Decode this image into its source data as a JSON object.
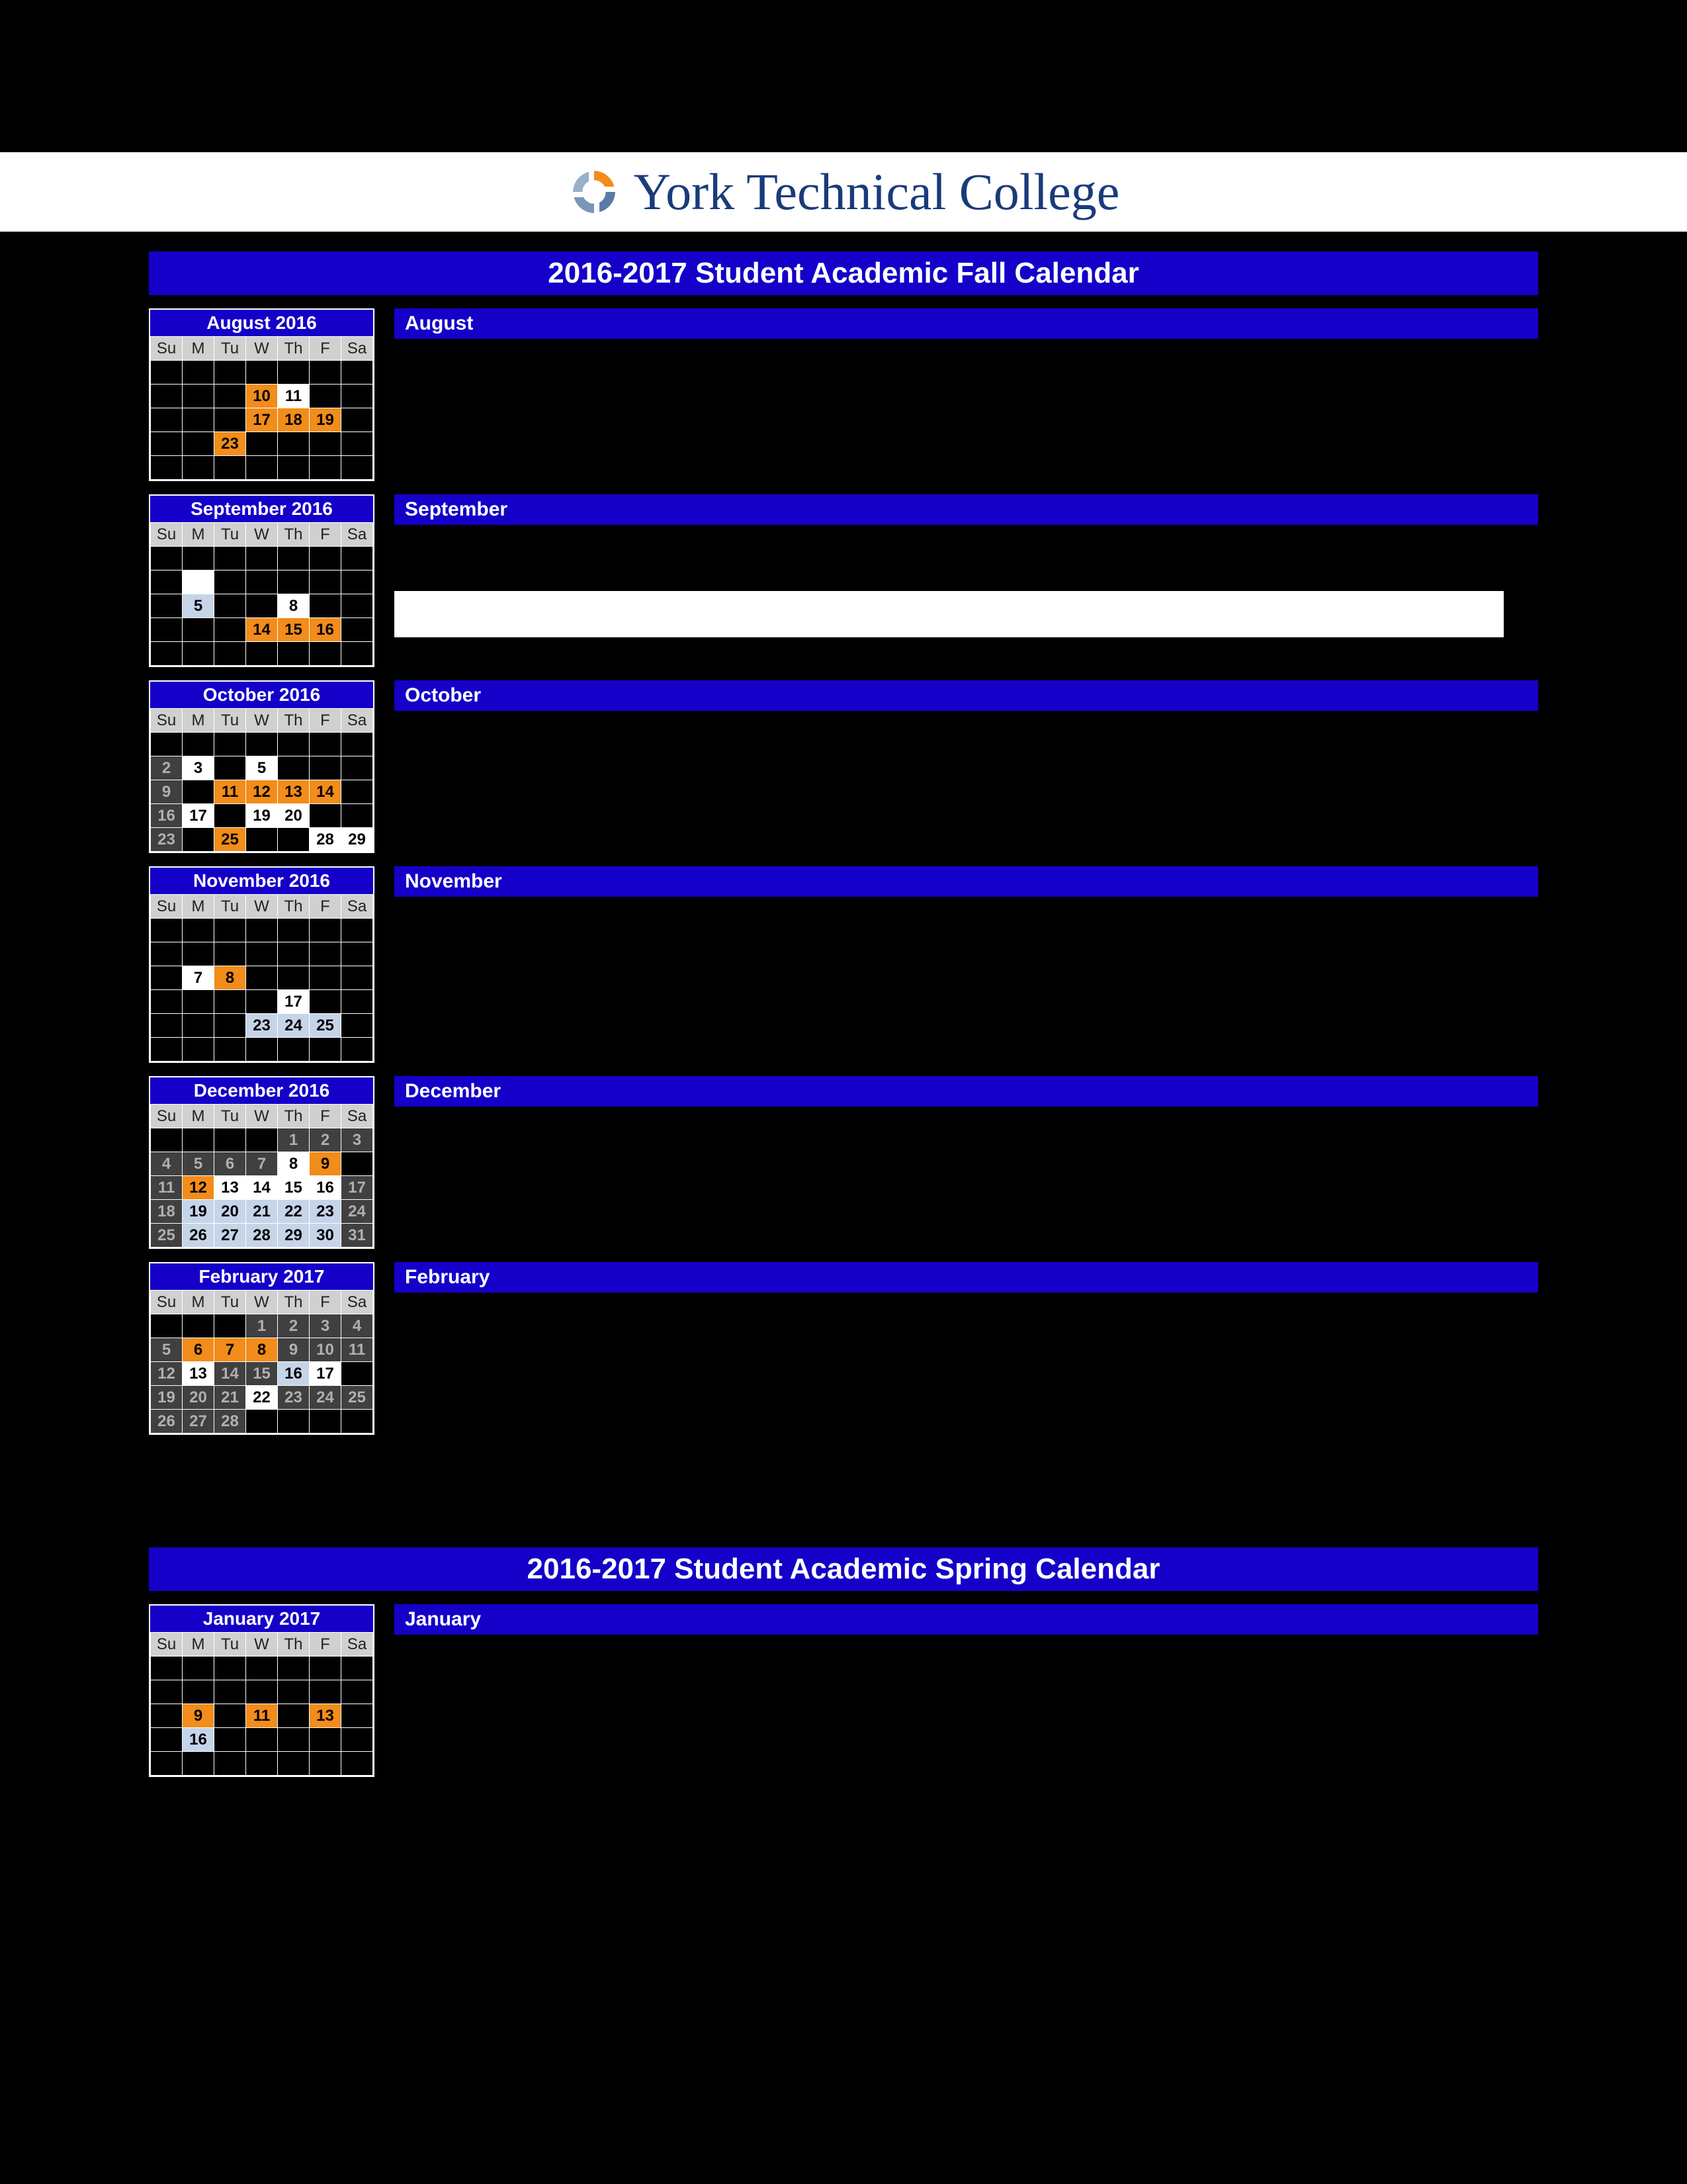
{
  "logo": {
    "text": "York Technical College",
    "text_color": "#1a3b7a"
  },
  "colors": {
    "page_bg": "#000000",
    "header_blue": "#1400c8",
    "white": "#ffffff",
    "orange": "#f28c1a",
    "light_blue": "#c5d4e8",
    "gray": "#808080",
    "dark_gray": "#404040",
    "day_header_bg": "#d0d0d0"
  },
  "day_headers": [
    "Su",
    "M",
    "Tu",
    "W",
    "Th",
    "F",
    "Sa"
  ],
  "fall_title": "2016-2017 Student Academic Fall Calendar",
  "spring_title": "2016-2017  Student Academic Spring Calendar",
  "months": [
    {
      "id": "aug2016",
      "title": "August 2016",
      "label": "August",
      "weeks": [
        [
          null,
          null,
          null,
          null,
          null,
          null,
          null
        ],
        [
          null,
          null,
          null,
          {
            "d": 10,
            "c": "orange"
          },
          {
            "d": 11,
            "c": "white"
          },
          null,
          null
        ],
        [
          null,
          null,
          null,
          {
            "d": 17,
            "c": "orange"
          },
          {
            "d": 18,
            "c": "orange"
          },
          {
            "d": 19,
            "c": "orange"
          },
          null
        ],
        [
          null,
          null,
          {
            "d": 23,
            "c": "orange"
          },
          null,
          null,
          null,
          null
        ],
        [
          null,
          null,
          null,
          null,
          null,
          null,
          null
        ]
      ]
    },
    {
      "id": "sep2016",
      "title": "September 2016",
      "label": "September",
      "white_box": true,
      "weeks": [
        [
          null,
          null,
          null,
          null,
          null,
          null,
          null
        ],
        [
          null,
          {
            "d": "",
            "c": "hwhite"
          },
          null,
          null,
          null,
          null,
          null
        ],
        [
          null,
          {
            "d": 5,
            "c": "lblue"
          },
          null,
          null,
          {
            "d": 8,
            "c": "white"
          },
          null,
          null
        ],
        [
          null,
          null,
          null,
          {
            "d": 14,
            "c": "orange"
          },
          {
            "d": 15,
            "c": "orange"
          },
          {
            "d": 16,
            "c": "orange"
          },
          null
        ],
        [
          null,
          null,
          null,
          null,
          null,
          null,
          null
        ]
      ]
    },
    {
      "id": "oct2016",
      "title": "October 2016",
      "label": "October",
      "weeks": [
        [
          null,
          null,
          null,
          null,
          null,
          null,
          null
        ],
        [
          {
            "d": 2,
            "c": "dgray"
          },
          {
            "d": 3,
            "c": "white"
          },
          null,
          {
            "d": 5,
            "c": "white"
          },
          null,
          null,
          null
        ],
        [
          {
            "d": 9,
            "c": "dgray"
          },
          null,
          {
            "d": 11,
            "c": "orange"
          },
          {
            "d": 12,
            "c": "orange"
          },
          {
            "d": 13,
            "c": "orange"
          },
          {
            "d": 14,
            "c": "orange"
          },
          null
        ],
        [
          {
            "d": 16,
            "c": "dgray"
          },
          {
            "d": 17,
            "c": "white"
          },
          null,
          {
            "d": 19,
            "c": "white"
          },
          {
            "d": 20,
            "c": "white"
          },
          null,
          null
        ],
        [
          {
            "d": 23,
            "c": "dgray"
          },
          null,
          {
            "d": 25,
            "c": "orange"
          },
          null,
          null,
          {
            "d": 28,
            "c": "white"
          },
          {
            "d": 29,
            "c": "white"
          }
        ]
      ]
    },
    {
      "id": "nov2016",
      "title": "November 2016",
      "label": "November",
      "weeks": [
        [
          null,
          null,
          null,
          null,
          null,
          null,
          null
        ],
        [
          null,
          null,
          null,
          null,
          null,
          null,
          null
        ],
        [
          null,
          {
            "d": 7,
            "c": "white"
          },
          {
            "d": 8,
            "c": "orange"
          },
          null,
          null,
          null,
          null
        ],
        [
          null,
          null,
          null,
          null,
          {
            "d": 17,
            "c": "white"
          },
          null,
          null
        ],
        [
          null,
          null,
          null,
          {
            "d": 23,
            "c": "lblue"
          },
          {
            "d": 24,
            "c": "lblue"
          },
          {
            "d": 25,
            "c": "lblue"
          },
          null
        ],
        [
          null,
          null,
          null,
          null,
          null,
          null,
          null
        ]
      ]
    },
    {
      "id": "dec2016",
      "title": "December 2016",
      "label": "December",
      "weeks": [
        [
          null,
          null,
          null,
          null,
          {
            "d": 1,
            "c": "dgray"
          },
          {
            "d": 2,
            "c": "dgray"
          },
          {
            "d": 3,
            "c": "dgray"
          }
        ],
        [
          {
            "d": 4,
            "c": "dgray"
          },
          {
            "d": 5,
            "c": "dgray"
          },
          {
            "d": 6,
            "c": "dgray"
          },
          {
            "d": 7,
            "c": "dgray"
          },
          {
            "d": 8,
            "c": "white"
          },
          {
            "d": 9,
            "c": "orange"
          },
          null
        ],
        [
          {
            "d": 11,
            "c": "dgray"
          },
          {
            "d": 12,
            "c": "orange"
          },
          {
            "d": 13,
            "c": "white"
          },
          {
            "d": 14,
            "c": "white"
          },
          {
            "d": 15,
            "c": "white"
          },
          {
            "d": 16,
            "c": "white"
          },
          {
            "d": 17,
            "c": "dgray"
          }
        ],
        [
          {
            "d": 18,
            "c": "dgray"
          },
          {
            "d": 19,
            "c": "lblue"
          },
          {
            "d": 20,
            "c": "lblue"
          },
          {
            "d": 21,
            "c": "lblue"
          },
          {
            "d": 22,
            "c": "lblue"
          },
          {
            "d": 23,
            "c": "lblue"
          },
          {
            "d": 24,
            "c": "dgray"
          }
        ],
        [
          {
            "d": 25,
            "c": "dgray"
          },
          {
            "d": 26,
            "c": "lblue"
          },
          {
            "d": 27,
            "c": "lblue"
          },
          {
            "d": 28,
            "c": "lblue"
          },
          {
            "d": 29,
            "c": "lblue"
          },
          {
            "d": 30,
            "c": "lblue"
          },
          {
            "d": 31,
            "c": "dgray"
          }
        ]
      ]
    },
    {
      "id": "jan2017",
      "title": "January 2017",
      "label": "January",
      "section": "spring",
      "weeks": [
        [
          null,
          null,
          null,
          null,
          null,
          null,
          null
        ],
        [
          null,
          null,
          null,
          null,
          null,
          null,
          null
        ],
        [
          null,
          {
            "d": 9,
            "c": "orange"
          },
          null,
          {
            "d": 11,
            "c": "orange"
          },
          null,
          {
            "d": 13,
            "c": "orange"
          },
          null
        ],
        [
          null,
          {
            "d": 16,
            "c": "lblue"
          },
          null,
          null,
          null,
          null,
          null
        ],
        [
          null,
          null,
          null,
          null,
          null,
          null,
          null
        ]
      ]
    },
    {
      "id": "feb2017",
      "title": "February 2017",
      "label": "February",
      "weeks": [
        [
          null,
          null,
          null,
          {
            "d": 1,
            "c": "dgray"
          },
          {
            "d": 2,
            "c": "dgray"
          },
          {
            "d": 3,
            "c": "dgray"
          },
          {
            "d": 4,
            "c": "dgray"
          }
        ],
        [
          {
            "d": 5,
            "c": "dgray"
          },
          {
            "d": 6,
            "c": "orange"
          },
          {
            "d": 7,
            "c": "orange"
          },
          {
            "d": 8,
            "c": "orange"
          },
          {
            "d": 9,
            "c": "dgray"
          },
          {
            "d": 10,
            "c": "dgray"
          },
          {
            "d": 11,
            "c": "dgray"
          }
        ],
        [
          {
            "d": 12,
            "c": "dgray"
          },
          {
            "d": 13,
            "c": "white"
          },
          {
            "d": 14,
            "c": "dgray"
          },
          {
            "d": 15,
            "c": "dgray"
          },
          {
            "d": 16,
            "c": "lblue"
          },
          {
            "d": 17,
            "c": "white"
          },
          null
        ],
        [
          {
            "d": 19,
            "c": "dgray"
          },
          {
            "d": 20,
            "c": "dgray"
          },
          {
            "d": 21,
            "c": "dgray"
          },
          {
            "d": 22,
            "c": "white"
          },
          {
            "d": 23,
            "c": "dgray"
          },
          {
            "d": 24,
            "c": "dgray"
          },
          {
            "d": 25,
            "c": "dgray"
          }
        ],
        [
          {
            "d": 26,
            "c": "dgray"
          },
          {
            "d": 27,
            "c": "dgray"
          },
          {
            "d": 28,
            "c": "dgray"
          },
          null,
          null,
          null,
          null
        ]
      ]
    }
  ]
}
